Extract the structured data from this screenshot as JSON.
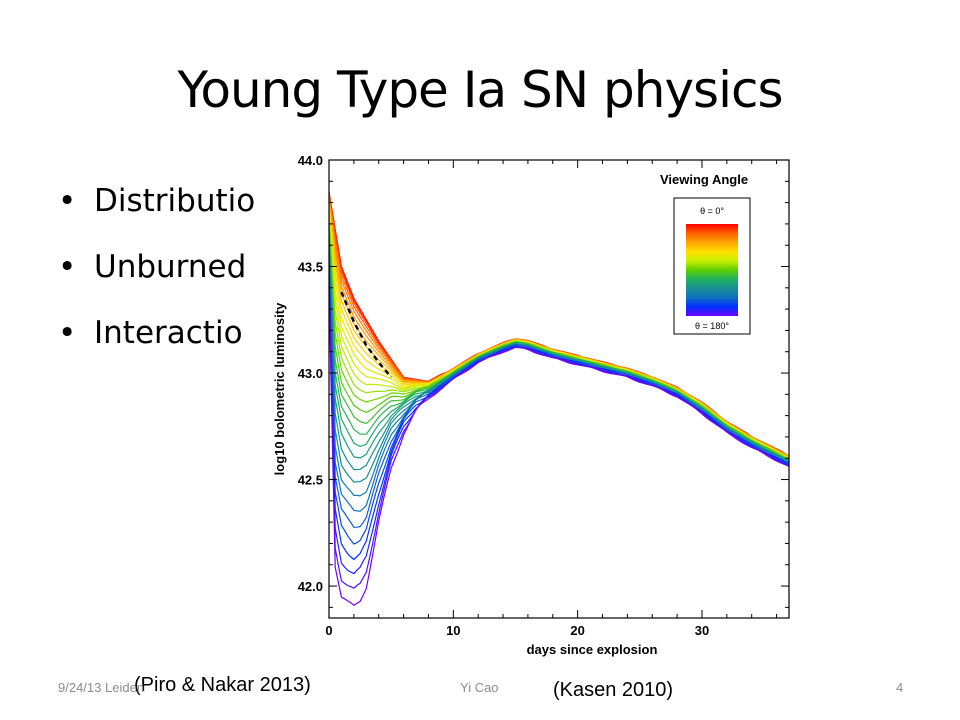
{
  "slide": {
    "title": "Young Type Ia SN physics",
    "bullets": [
      "Distributio",
      "Unburned",
      "Interactio"
    ],
    "bullet_symbol": "•",
    "footer_left": "9/24/13 Leiden",
    "footer_center": "Yi Cao",
    "page_number": "4",
    "citation_left": "(Piro & Nakar 2013)",
    "citation_right": "(Kasen 2010)"
  },
  "chart_data": {
    "type": "line",
    "xlabel": "days since explosion",
    "ylabel": "log10 bolometric luminosity",
    "xlim": [
      0,
      37
    ],
    "ylim": [
      41.85,
      44.0
    ],
    "xticks": [
      0,
      10,
      20,
      30
    ],
    "yticks": [
      42.0,
      42.5,
      43.0,
      43.5,
      44.0
    ],
    "ytick_labels": [
      "42.0",
      "42.5",
      "43.0",
      "43.5",
      "44.0"
    ],
    "legend": {
      "title": "Viewing Angle",
      "top_label": "θ = 0°",
      "bottom_label": "θ = 180°",
      "placement": "top-right"
    },
    "colormap": [
      "#ff0000",
      "#ff6000",
      "#ffa500",
      "#ffe000",
      "#c8f000",
      "#5fd000",
      "#1fb060",
      "#169090",
      "#1070c0",
      "#0030ff",
      "#7000ff"
    ],
    "num_curves": 30,
    "base_curve": {
      "x": [
        0,
        1,
        2,
        4,
        6,
        8,
        10,
        12,
        14,
        15,
        16,
        18,
        20,
        22,
        24,
        26,
        28,
        30,
        32,
        34,
        36,
        37
      ],
      "y": [
        43.85,
        43.4,
        43.2,
        43.0,
        42.92,
        42.93,
        43.0,
        43.07,
        43.12,
        43.14,
        43.13,
        43.09,
        43.06,
        43.03,
        43.0,
        42.96,
        42.91,
        42.83,
        42.74,
        42.67,
        42.61,
        42.58
      ]
    },
    "theta_0_curve": {
      "x": [
        0,
        1,
        2,
        4,
        6,
        8,
        10,
        12,
        14,
        15,
        16,
        18,
        20,
        22,
        24,
        26,
        28,
        30,
        32,
        34,
        36,
        37
      ],
      "y": [
        43.85,
        43.5,
        43.35,
        43.15,
        42.98,
        42.96,
        43.02,
        43.09,
        43.14,
        43.16,
        43.15,
        43.11,
        43.08,
        43.05,
        43.02,
        42.98,
        42.93,
        42.86,
        42.77,
        42.7,
        42.64,
        42.61
      ]
    },
    "theta_180_curve": {
      "x": [
        0,
        0.5,
        1,
        1.5,
        2,
        2.5,
        3,
        4,
        5,
        6,
        7,
        8,
        10,
        12,
        14,
        15,
        16,
        18,
        20,
        22,
        24,
        26,
        28,
        30,
        32,
        34,
        36,
        37
      ],
      "y": [
        43.4,
        42.1,
        41.95,
        41.92,
        41.9,
        41.93,
        42.0,
        42.3,
        42.55,
        42.72,
        42.82,
        42.88,
        42.97,
        43.05,
        43.1,
        43.12,
        43.11,
        43.07,
        43.04,
        43.01,
        42.98,
        42.94,
        42.89,
        42.81,
        42.72,
        42.65,
        42.59,
        42.56
      ]
    },
    "dashed_curve": {
      "x": [
        1,
        2,
        3,
        4,
        5
      ],
      "y": [
        43.38,
        43.24,
        43.13,
        43.05,
        42.98
      ],
      "color": "#000000"
    }
  }
}
